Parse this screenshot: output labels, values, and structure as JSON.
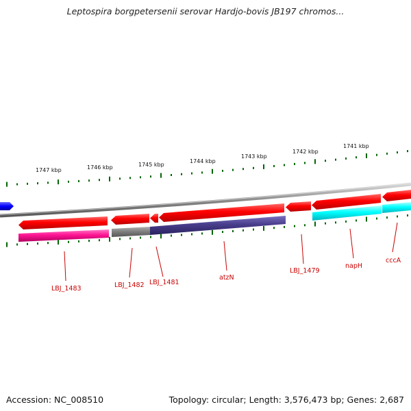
{
  "title": "Leptospira borgpetersenii serovar Hardjo-bovis JB197 chromos...",
  "accession": "Accession: NC_008510",
  "topology": "Topology: circular; Length: 3,576,473 bp; Genes: 2,687",
  "kbp_labels": [
    "1747 kbp",
    "1746 kbp",
    "1745 kbp",
    "1744 kbp",
    "1743 kbp",
    "1742 kbp",
    "1741 kbp"
  ],
  "gene_labels": [
    "LBJ_1483",
    "LBJ_1482",
    "LBJ_1481",
    "atzN",
    "LBJ_1479",
    "napH",
    "cccA"
  ],
  "colors": {
    "backbone": "#8c8c8c",
    "cds": "#ff0000",
    "pink": "#ff1493",
    "gray": "#808080",
    "navy": "#483d8b",
    "cyan": "#00ffff",
    "blue": "#0000ff",
    "tick": "#006400",
    "label": "#c80000"
  }
}
